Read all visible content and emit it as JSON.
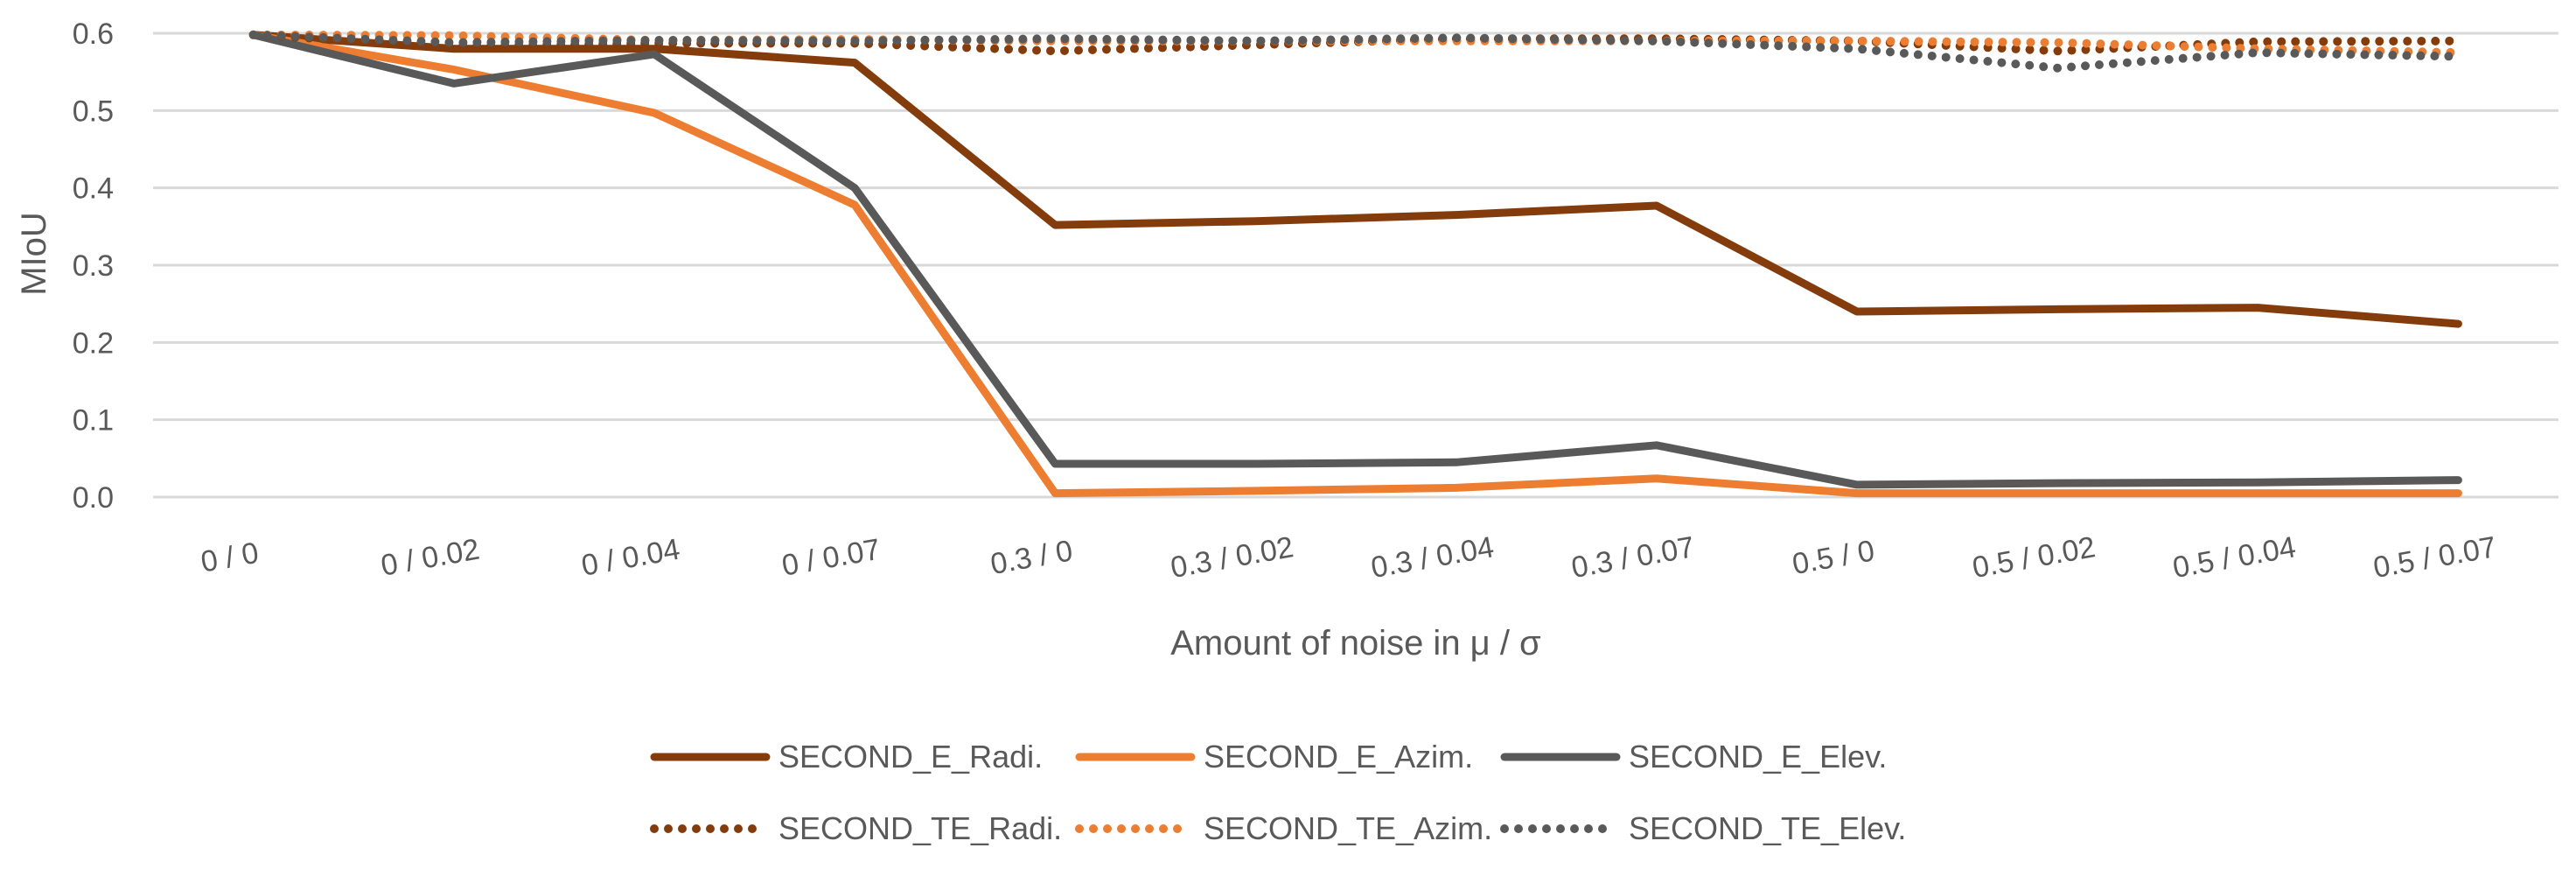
{
  "chart_data": {
    "type": "line",
    "title": "",
    "xlabel": "Amount of noise in μ / σ",
    "ylabel": "MIoU",
    "ylim": [
      0,
      0.6
    ],
    "yticks": [
      "0.0",
      "0.1",
      "0.2",
      "0.3",
      "0.4",
      "0.5",
      "0.6"
    ],
    "grid": "horizontal",
    "legend": "bottom",
    "categories": [
      "0 / 0",
      "0 / 0.02",
      "0 / 0.04",
      "0 / 0.07",
      "0.3 / 0",
      "0.3 / 0.02",
      "0.3 / 0.04",
      "0.3 / 0.07",
      "0.5 / 0",
      "0.5 / 0.02",
      "0.5 / 0.04",
      "0.5 / 0.07"
    ],
    "series": [
      {
        "name": "SECOND_E_Radi.",
        "color": "#843c0c",
        "dash": "solid",
        "values": [
          0.598,
          0.58,
          0.58,
          0.562,
          0.352,
          0.357,
          0.365,
          0.377,
          0.24,
          0.243,
          0.245,
          0.224
        ]
      },
      {
        "name": "SECOND_E_Azim.",
        "color": "#ed7d31",
        "dash": "solid",
        "values": [
          0.598,
          0.553,
          0.497,
          0.378,
          0.005,
          0.008,
          0.012,
          0.024,
          0.005,
          0.005,
          0.005,
          0.005
        ]
      },
      {
        "name": "SECOND_E_Elev.",
        "color": "#595959",
        "dash": "solid",
        "values": [
          0.598,
          0.535,
          0.573,
          0.4,
          0.043,
          0.043,
          0.045,
          0.067,
          0.016,
          0.018,
          0.019,
          0.022
        ]
      },
      {
        "name": "SECOND_TE_Radi.",
        "color": "#843c0c",
        "dash": "dotted",
        "values": [
          0.598,
          0.583,
          0.587,
          0.587,
          0.577,
          0.585,
          0.593,
          0.593,
          0.59,
          0.577,
          0.589,
          0.59
        ]
      },
      {
        "name": "SECOND_TE_Azim.",
        "color": "#ed7d31",
        "dash": "dotted",
        "values": [
          0.598,
          0.597,
          0.591,
          0.592,
          0.59,
          0.59,
          0.59,
          0.59,
          0.59,
          0.588,
          0.58,
          0.575
        ]
      },
      {
        "name": "SECOND_TE_Elev.",
        "color": "#595959",
        "dash": "dotted",
        "values": [
          0.598,
          0.588,
          0.591,
          0.59,
          0.593,
          0.59,
          0.594,
          0.59,
          0.58,
          0.555,
          0.575,
          0.57
        ]
      }
    ]
  }
}
